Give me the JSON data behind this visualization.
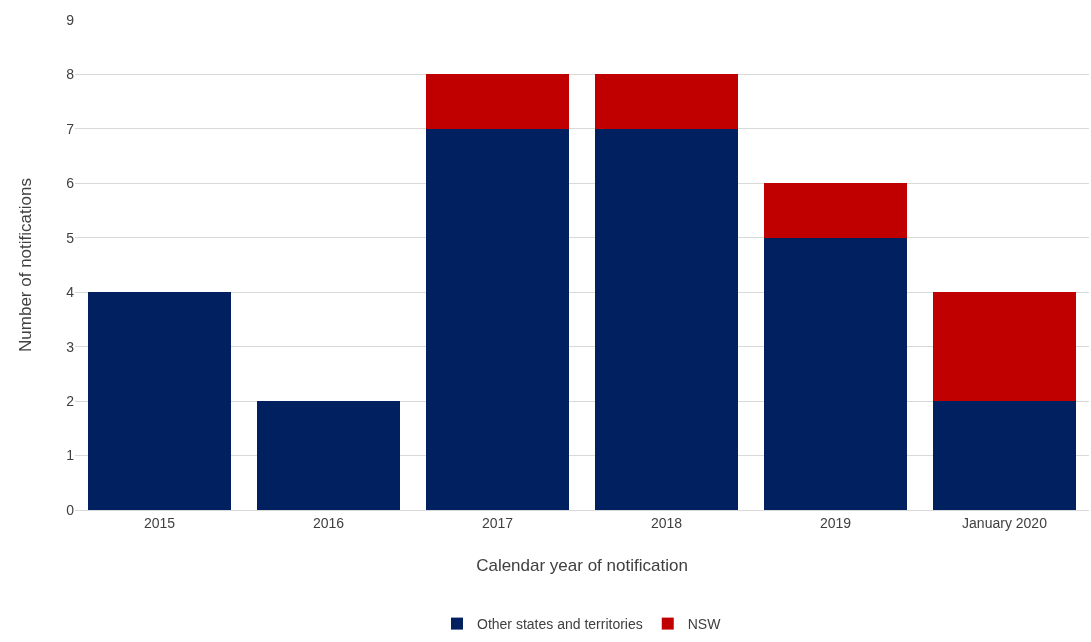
{
  "chart_data": {
    "type": "bar",
    "xlabel": "Calendar year of notification",
    "ylabel": "Number of notifications",
    "categories": [
      "2015",
      "2016",
      "2017",
      "2018",
      "2019",
      "January 2020"
    ],
    "series": [
      {
        "name": "Other states and territories",
        "color": "#002060",
        "values": [
          4,
          2,
          7,
          7,
          5,
          2
        ]
      },
      {
        "name": "NSW",
        "color": "#c00000",
        "values": [
          0,
          0,
          1,
          1,
          1,
          2
        ]
      }
    ],
    "stacked": true,
    "ylim": [
      0,
      9
    ],
    "yticks": [
      0,
      1,
      2,
      3,
      4,
      5,
      6,
      7,
      8,
      9
    ],
    "grid": "y",
    "legend": "bottom"
  }
}
